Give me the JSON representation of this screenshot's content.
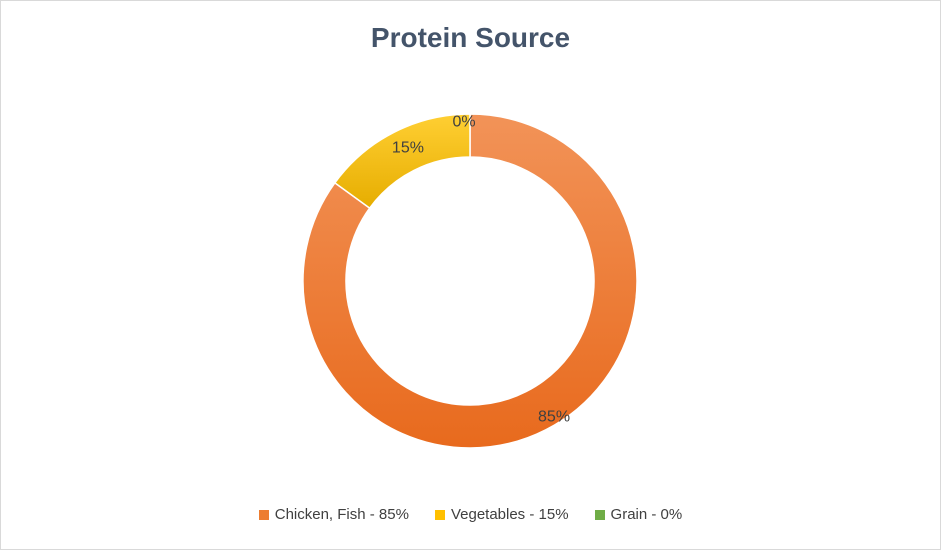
{
  "chart_data": {
    "type": "pie",
    "title": "Protein Source",
    "categories": [
      "Chicken, Fish - 85%",
      "Vegetables - 15%",
      "Grain - 0%"
    ],
    "values": [
      85,
      15,
      0
    ],
    "data_labels": [
      "85%",
      "15%",
      "0%"
    ],
    "colors": [
      "#ED7D31",
      "#FFC000",
      "#70AD47"
    ],
    "donut": true,
    "legend_position": "bottom"
  }
}
